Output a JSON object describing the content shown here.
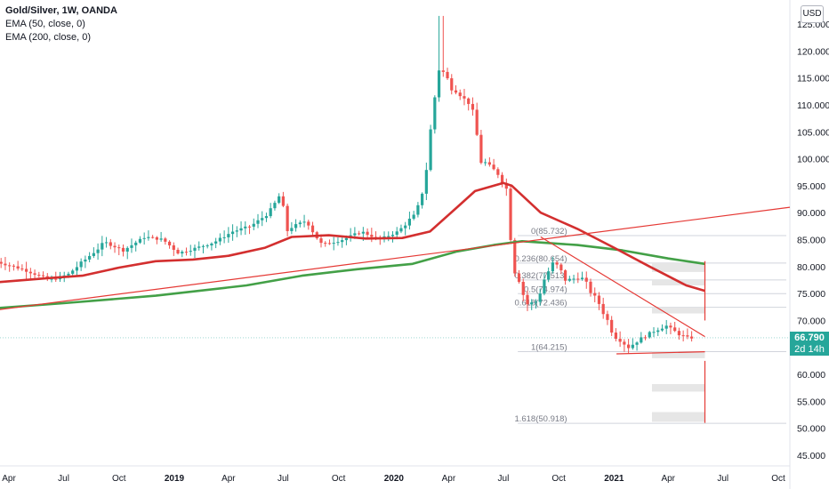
{
  "legend": {
    "title": "Gold/Silver, 1W, OANDA",
    "ema50": "EMA (50, close, 0)",
    "ema200": "EMA (200, close, 0)"
  },
  "currency_button": "USD",
  "last_price": {
    "value": "66.790",
    "countdown": "2d 14h"
  },
  "colors": {
    "up": "#26a69a",
    "down": "#ef5350",
    "ema50": "#d32f2f",
    "ema200": "#43a047",
    "trendline": "#e53935",
    "fib_line": "#d1d4dc",
    "fib_box": "#e6e6e6"
  },
  "chart_data": {
    "type": "candlestick",
    "title": "Gold/Silver, 1W, OANDA",
    "y_axis": {
      "range": [
        44,
        127
      ],
      "ticks": [
        "45.000",
        "50.000",
        "55.000",
        "60.000",
        "65.000",
        "70.000",
        "75.000",
        "80.000",
        "85.000",
        "90.000",
        "95.000",
        "100.000",
        "105.000",
        "110.000",
        "115.000",
        "120.000",
        "125.000"
      ]
    },
    "x_axis": {
      "ticks": [
        {
          "label": "Apr",
          "date": "2018-04-01"
        },
        {
          "label": "Jul",
          "date": "2018-07-01"
        },
        {
          "label": "Oct",
          "date": "2018-10-01"
        },
        {
          "label": "2019",
          "date": "2019-01-01",
          "bold": true
        },
        {
          "label": "Apr",
          "date": "2019-04-01"
        },
        {
          "label": "Jul",
          "date": "2019-07-01"
        },
        {
          "label": "Oct",
          "date": "2019-10-01"
        },
        {
          "label": "2020",
          "date": "2020-01-01",
          "bold": true
        },
        {
          "label": "Apr",
          "date": "2020-04-01"
        },
        {
          "label": "Jul",
          "date": "2020-07-01"
        },
        {
          "label": "Oct",
          "date": "2020-10-01"
        },
        {
          "label": "2021",
          "date": "2021-01-01",
          "bold": true
        },
        {
          "label": "Apr",
          "date": "2021-04-01"
        },
        {
          "label": "Jul",
          "date": "2021-07-01"
        },
        {
          "label": "Oct",
          "date": "2021-10-01"
        }
      ]
    },
    "price_path": [
      [
        "2018-03-15",
        81.0
      ],
      [
        "2018-05-01",
        79.5
      ],
      [
        "2018-06-15",
        77.5
      ],
      [
        "2018-07-15",
        78.5
      ],
      [
        "2018-08-15",
        81.5
      ],
      [
        "2018-09-15",
        84.5
      ],
      [
        "2018-10-15",
        83.0
      ],
      [
        "2018-11-20",
        85.5
      ],
      [
        "2018-12-20",
        85.0
      ],
      [
        "2019-01-15",
        82.5
      ],
      [
        "2019-02-15",
        83.5
      ],
      [
        "2019-03-15",
        84.5
      ],
      [
        "2019-04-15",
        86.5
      ],
      [
        "2019-05-15",
        87.5
      ],
      [
        "2019-06-15",
        90.0
      ],
      [
        "2019-07-01",
        93.0
      ],
      [
        "2019-07-15",
        87.0
      ],
      [
        "2019-08-15",
        88.5
      ],
      [
        "2019-09-10",
        84.0
      ],
      [
        "2019-10-15",
        85.0
      ],
      [
        "2019-11-15",
        86.5
      ],
      [
        "2019-12-15",
        85.0
      ],
      [
        "2020-01-15",
        86.5
      ],
      [
        "2020-02-15",
        90.0
      ],
      [
        "2020-02-28",
        96.0
      ],
      [
        "2020-03-15",
        110.0
      ],
      [
        "2020-03-20",
        118.0
      ],
      [
        "2020-04-15",
        113.0
      ],
      [
        "2020-05-15",
        110.0
      ],
      [
        "2020-06-01",
        100.0
      ],
      [
        "2020-07-01",
        97.0
      ],
      [
        "2020-07-15",
        94.0
      ],
      [
        "2020-07-25",
        81.0
      ],
      [
        "2020-08-15",
        73.0
      ],
      [
        "2020-09-01",
        73.5
      ],
      [
        "2020-09-15",
        78.0
      ],
      [
        "2020-10-01",
        81.0
      ],
      [
        "2020-10-20",
        77.5
      ],
      [
        "2020-11-15",
        78.0
      ],
      [
        "2020-12-15",
        73.0
      ],
      [
        "2021-01-10",
        67.0
      ],
      [
        "2021-02-01",
        65.0
      ],
      [
        "2021-02-20",
        66.5
      ],
      [
        "2021-03-15",
        68.0
      ],
      [
        "2021-04-05",
        69.0
      ],
      [
        "2021-04-25",
        67.5
      ],
      [
        "2021-05-10",
        66.8
      ]
    ],
    "spike_high": {
      "date": "2020-03-18",
      "high": 126.5
    },
    "ema50": [
      [
        "2018-03-01",
        77.0
      ],
      [
        "2018-06-01",
        77.8
      ],
      [
        "2018-08-01",
        78.3
      ],
      [
        "2018-10-01",
        79.8
      ],
      [
        "2018-12-01",
        81.0
      ],
      [
        "2019-02-01",
        81.3
      ],
      [
        "2019-04-01",
        82.0
      ],
      [
        "2019-06-01",
        83.5
      ],
      [
        "2019-07-15",
        85.5
      ],
      [
        "2019-09-15",
        85.8
      ],
      [
        "2019-11-15",
        85.2
      ],
      [
        "2020-01-15",
        85.3
      ],
      [
        "2020-03-01",
        86.5
      ],
      [
        "2020-04-15",
        91.0
      ],
      [
        "2020-05-15",
        94.0
      ],
      [
        "2020-07-01",
        95.5
      ],
      [
        "2020-07-15",
        95.0
      ],
      [
        "2020-09-01",
        90.0
      ],
      [
        "2020-11-01",
        87.0
      ],
      [
        "2021-01-01",
        83.5
      ],
      [
        "2021-03-01",
        80.0
      ],
      [
        "2021-05-01",
        76.5
      ],
      [
        "2021-06-01",
        75.5
      ]
    ],
    "ema200": [
      [
        "2018-03-01",
        72.2
      ],
      [
        "2018-07-01",
        73.2
      ],
      [
        "2018-12-01",
        74.6
      ],
      [
        "2019-05-01",
        76.5
      ],
      [
        "2019-08-01",
        78.3
      ],
      [
        "2019-11-01",
        79.5
      ],
      [
        "2020-02-01",
        80.5
      ],
      [
        "2020-04-15",
        82.8
      ],
      [
        "2020-06-15",
        84.0
      ],
      [
        "2020-08-01",
        84.7
      ],
      [
        "2020-11-01",
        84.0
      ],
      [
        "2021-01-15",
        83.0
      ],
      [
        "2021-04-01",
        81.5
      ],
      [
        "2021-06-01",
        80.5
      ]
    ],
    "trendlines": [
      {
        "from": [
          "2018-03-01",
          71.8
        ],
        "to": [
          "2021-10-31",
          91.0
        ]
      },
      {
        "from": [
          "2020-09-01",
          85.5
        ],
        "to": [
          "2021-06-01",
          67.0
        ]
      },
      {
        "from": [
          "2021-01-05",
          63.8
        ],
        "to": [
          "2021-06-01",
          64.2
        ]
      }
    ],
    "fibonacci": [
      {
        "label": "0(85.732)",
        "level": 85.732
      },
      {
        "label": "0.236(80.654)",
        "level": 80.654
      },
      {
        "label": "0.382(77.513)",
        "level": 77.513
      },
      {
        "label": "0.5(74.974)",
        "level": 74.974
      },
      {
        "label": "0.618(72.436)",
        "level": 72.436
      },
      {
        "label": "1(64.215)",
        "level": 64.215
      },
      {
        "label": "1.618(50.918)",
        "level": 50.918
      }
    ],
    "projection": {
      "upper": {
        "date": "2021-06-01",
        "from": 81.0,
        "to": 70.0
      },
      "lower": {
        "date": "2021-06-01",
        "from": 62.5,
        "to": 51.0
      }
    }
  }
}
